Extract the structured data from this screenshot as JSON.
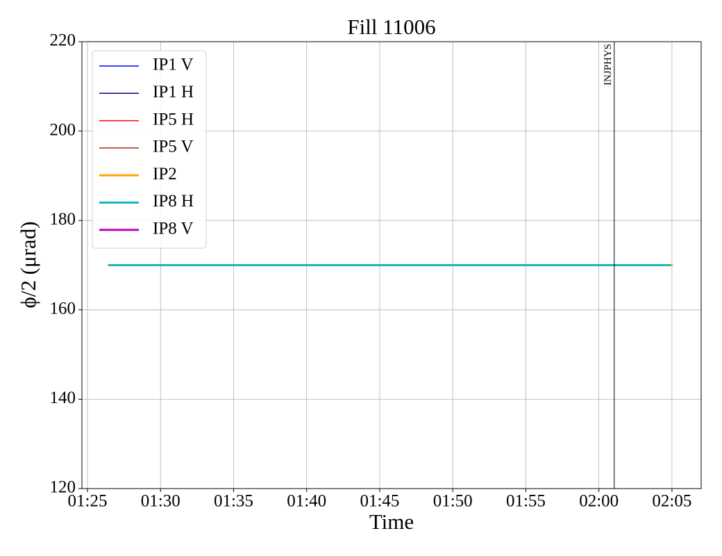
{
  "chart_data": {
    "type": "line",
    "title": "Fill 11006",
    "xlabel": "Time",
    "ylabel": "ϕ/2 (μrad)",
    "x": [
      86.47,
      124.86,
      125.0
    ],
    "series": [
      {
        "name": "IP1 V",
        "color": "#0000ff",
        "width": 1.5,
        "values": [
          null,
          null,
          null
        ]
      },
      {
        "name": "IP1 H",
        "color": "#00008b",
        "width": 1.5,
        "values": [
          null,
          null,
          null
        ]
      },
      {
        "name": "IP5 H",
        "color": "#ff0000",
        "width": 1.5,
        "values": [
          null,
          null,
          null
        ]
      },
      {
        "name": "IP5 V",
        "color": "#b22222",
        "width": 1.5,
        "values": [
          null,
          null,
          null
        ]
      },
      {
        "name": "IP2",
        "color": "#ffa500",
        "width": 3,
        "values": [
          170,
          170,
          170
        ]
      },
      {
        "name": "IP8 H",
        "color": "#17b8b8",
        "width": 3,
        "values": [
          170,
          170,
          null
        ]
      },
      {
        "name": "IP8 V",
        "color": "#c000c0",
        "width": 3,
        "values": [
          null,
          null,
          null
        ]
      }
    ],
    "xlim": [
      84.62,
      127.0
    ],
    "xticks": [
      {
        "value": 85,
        "label": "01:25"
      },
      {
        "value": 90,
        "label": "01:30"
      },
      {
        "value": 95,
        "label": "01:35"
      },
      {
        "value": 100,
        "label": "01:40"
      },
      {
        "value": 105,
        "label": "01:45"
      },
      {
        "value": 110,
        "label": "01:50"
      },
      {
        "value": 115,
        "label": "01:55"
      },
      {
        "value": 120,
        "label": "02:00"
      },
      {
        "value": 125,
        "label": "02:05"
      }
    ],
    "ylim": [
      120,
      220
    ],
    "yticks": [
      120,
      140,
      160,
      180,
      200,
      220
    ],
    "grid": true,
    "legend": "upper left",
    "vlines": [
      {
        "x": 121.05,
        "label": "INJPHYS",
        "color": "#000000"
      }
    ]
  }
}
